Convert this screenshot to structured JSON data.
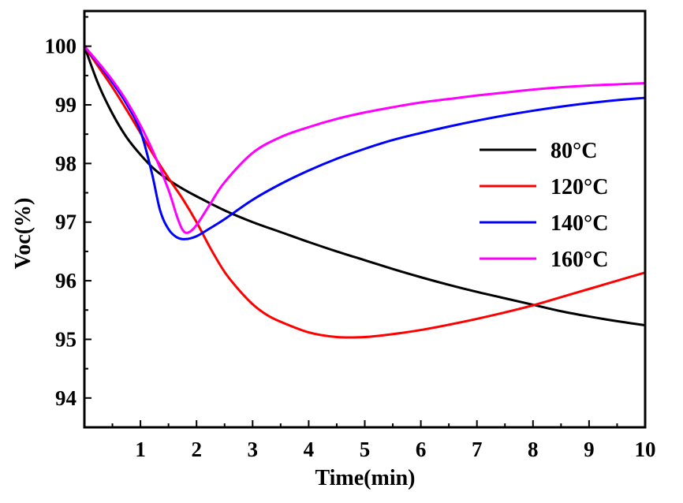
{
  "chart_data": {
    "type": "line",
    "title": "",
    "xlabel": "Time(min)",
    "ylabel": "Voc(%)",
    "xlim": [
      0,
      10
    ],
    "ylim": [
      93.5,
      100.6
    ],
    "x_ticks": [
      1,
      2,
      3,
      4,
      5,
      6,
      7,
      8,
      9,
      10
    ],
    "y_ticks": [
      94,
      95,
      96,
      97,
      98,
      99,
      100
    ],
    "grid": false,
    "legend_position": "right",
    "series": [
      {
        "name": "80°C",
        "color": "#000000",
        "x": [
          0,
          0.25,
          0.5,
          0.75,
          1,
          1.25,
          1.5,
          1.75,
          2,
          2.5,
          3,
          3.5,
          4,
          4.5,
          5,
          5.5,
          6,
          6.5,
          7,
          7.5,
          8,
          8.5,
          9,
          9.5,
          10
        ],
        "y": [
          100,
          99.35,
          98.85,
          98.45,
          98.15,
          97.9,
          97.72,
          97.57,
          97.44,
          97.2,
          97.0,
          96.83,
          96.66,
          96.5,
          96.35,
          96.2,
          96.06,
          95.93,
          95.81,
          95.7,
          95.59,
          95.48,
          95.39,
          95.31,
          95.24
        ]
      },
      {
        "name": "120°C",
        "color": "#ff0000",
        "x": [
          0,
          0.25,
          0.5,
          0.75,
          1,
          1.25,
          1.5,
          1.75,
          2,
          2.25,
          2.5,
          2.75,
          3,
          3.25,
          3.5,
          4,
          4.5,
          5,
          5.5,
          6,
          6.5,
          7,
          7.5,
          8,
          8.5,
          9,
          9.5,
          10
        ],
        "y": [
          100,
          99.65,
          99.3,
          98.92,
          98.52,
          98.12,
          97.75,
          97.4,
          97.0,
          96.55,
          96.15,
          95.85,
          95.6,
          95.42,
          95.3,
          95.12,
          95.04,
          95.04,
          95.09,
          95.16,
          95.25,
          95.35,
          95.46,
          95.58,
          95.72,
          95.86,
          96.0,
          96.14
        ]
      },
      {
        "name": "140°C",
        "color": "#0000ff",
        "x": [
          0,
          0.25,
          0.5,
          0.75,
          1,
          1.2,
          1.35,
          1.5,
          1.65,
          1.8,
          2,
          2.25,
          2.5,
          3,
          3.5,
          4,
          4.5,
          5,
          5.5,
          6,
          6.5,
          7,
          7.5,
          8,
          8.5,
          9,
          9.5,
          10
        ],
        "y": [
          100,
          99.7,
          99.38,
          99.02,
          98.55,
          97.85,
          97.2,
          96.88,
          96.74,
          96.71,
          96.76,
          96.9,
          97.05,
          97.38,
          97.65,
          97.88,
          98.08,
          98.25,
          98.4,
          98.52,
          98.63,
          98.73,
          98.82,
          98.9,
          98.97,
          99.03,
          99.08,
          99.12
        ]
      },
      {
        "name": "160°C",
        "color": "#ff00ff",
        "x": [
          0,
          0.25,
          0.5,
          0.75,
          1,
          1.25,
          1.5,
          1.65,
          1.75,
          1.85,
          2,
          2.25,
          2.5,
          3,
          3.5,
          4,
          4.5,
          5,
          5.5,
          6,
          6.5,
          7,
          7.5,
          8,
          8.5,
          9,
          9.5,
          10
        ],
        "y": [
          100,
          99.72,
          99.42,
          99.07,
          98.65,
          98.15,
          97.55,
          97.1,
          96.87,
          96.82,
          96.95,
          97.32,
          97.68,
          98.18,
          98.45,
          98.62,
          98.76,
          98.87,
          98.96,
          99.04,
          99.1,
          99.16,
          99.21,
          99.26,
          99.3,
          99.33,
          99.35,
          99.37
        ]
      }
    ]
  }
}
